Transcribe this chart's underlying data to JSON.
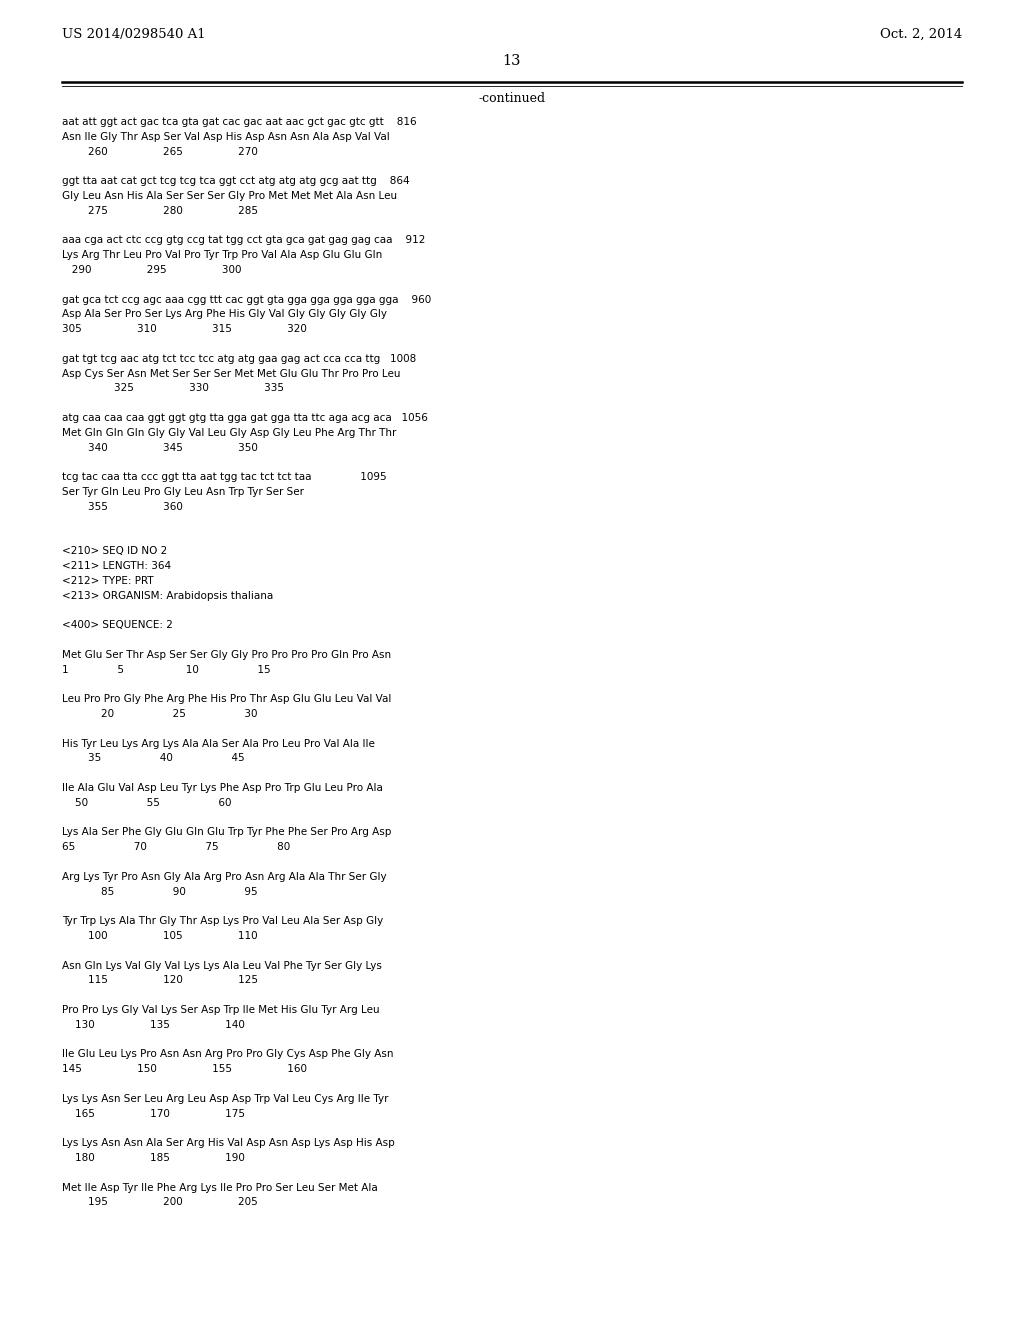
{
  "header_left": "US 2014/0298540 A1",
  "header_right": "Oct. 2, 2014",
  "page_number": "13",
  "continued_label": "-continued",
  "background_color": "#ffffff",
  "text_color": "#000000",
  "font_size": 7.5,
  "header_font_size": 9.5,
  "page_num_font_size": 10.5,
  "content_lines": [
    "aat att ggt act gac tca gta gat cac gac aat aac gct gac gtc gtt    816",
    "Asn Ile Gly Thr Asp Ser Val Asp His Asp Asn Asn Ala Asp Val Val",
    "        260                 265                 270",
    "",
    "ggt tta aat cat gct tcg tcg tca ggt cct atg atg atg gcg aat ttg    864",
    "Gly Leu Asn His Ala Ser Ser Ser Gly Pro Met Met Met Ala Asn Leu",
    "        275                 280                 285",
    "",
    "aaa cga act ctc ccg gtg ccg tat tgg cct gta gca gat gag gag caa    912",
    "Lys Arg Thr Leu Pro Val Pro Tyr Trp Pro Val Ala Asp Glu Glu Gln",
    "   290                 295                 300",
    "",
    "gat gca tct ccg agc aaa cgg ttt cac ggt gta gga gga gga gga gga    960",
    "Asp Ala Ser Pro Ser Lys Arg Phe His Gly Val Gly Gly Gly Gly Gly",
    "305                 310                 315                 320",
    "",
    "gat tgt tcg aac atg tct tcc tcc atg atg gaa gag act cca cca ttg   1008",
    "Asp Cys Ser Asn Met Ser Ser Ser Met Met Glu Glu Thr Pro Pro Leu",
    "                325                 330                 335",
    "",
    "atg caa caa caa ggt ggt gtg tta gga gat gga tta ttc aga acg aca   1056",
    "Met Gln Gln Gln Gly Gly Val Leu Gly Asp Gly Leu Phe Arg Thr Thr",
    "        340                 345                 350",
    "",
    "tcg tac caa tta ccc ggt tta aat tgg tac tct tct taa               1095",
    "Ser Tyr Gln Leu Pro Gly Leu Asn Trp Tyr Ser Ser",
    "        355                 360",
    "",
    "",
    "<210> SEQ ID NO 2",
    "<211> LENGTH: 364",
    "<212> TYPE: PRT",
    "<213> ORGANISM: Arabidopsis thaliana",
    "",
    "<400> SEQUENCE: 2",
    "",
    "Met Glu Ser Thr Asp Ser Ser Gly Gly Pro Pro Pro Pro Gln Pro Asn",
    "1               5                   10                  15",
    "",
    "Leu Pro Pro Gly Phe Arg Phe His Pro Thr Asp Glu Glu Leu Val Val",
    "            20                  25                  30",
    "",
    "His Tyr Leu Lys Arg Lys Ala Ala Ser Ala Pro Leu Pro Val Ala Ile",
    "        35                  40                  45",
    "",
    "Ile Ala Glu Val Asp Leu Tyr Lys Phe Asp Pro Trp Glu Leu Pro Ala",
    "    50                  55                  60",
    "",
    "Lys Ala Ser Phe Gly Glu Gln Glu Trp Tyr Phe Phe Ser Pro Arg Asp",
    "65                  70                  75                  80",
    "",
    "Arg Lys Tyr Pro Asn Gly Ala Arg Pro Asn Arg Ala Ala Thr Ser Gly",
    "            85                  90                  95",
    "",
    "Tyr Trp Lys Ala Thr Gly Thr Asp Lys Pro Val Leu Ala Ser Asp Gly",
    "        100                 105                 110",
    "",
    "Asn Gln Lys Val Gly Val Lys Lys Ala Leu Val Phe Tyr Ser Gly Lys",
    "        115                 120                 125",
    "",
    "Pro Pro Lys Gly Val Lys Ser Asp Trp Ile Met His Glu Tyr Arg Leu",
    "    130                 135                 140",
    "",
    "Ile Glu Leu Lys Pro Asn Asn Arg Pro Pro Gly Cys Asp Phe Gly Asn",
    "145                 150                 155                 160",
    "",
    "Lys Lys Asn Ser Leu Arg Leu Asp Asp Trp Val Leu Cys Arg Ile Tyr",
    "    165                 170                 175",
    "",
    "Lys Lys Asn Asn Ala Ser Arg His Val Asp Asn Asp Lys Asp His Asp",
    "    180                 185                 190",
    "",
    "Met Ile Asp Tyr Ile Phe Arg Lys Ile Pro Pro Ser Leu Ser Met Ala",
    "        195                 200                 205"
  ]
}
